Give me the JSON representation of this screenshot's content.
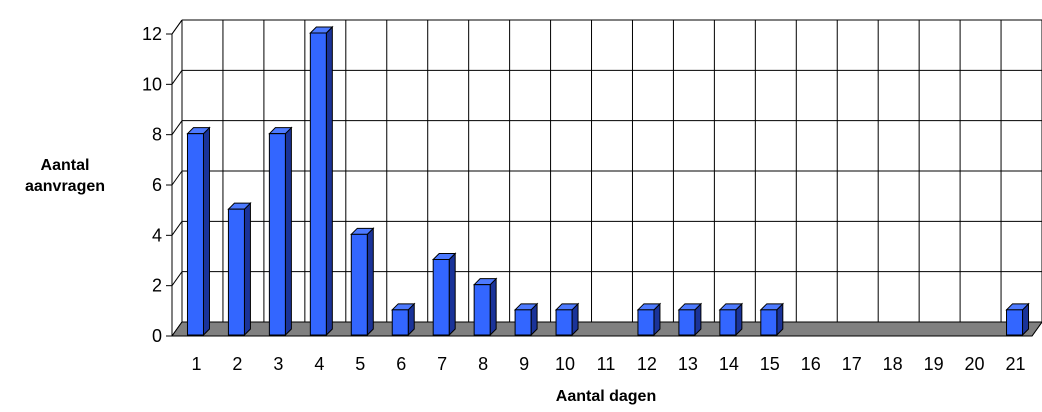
{
  "chart_data": {
    "type": "bar",
    "categories": [
      "1",
      "2",
      "3",
      "4",
      "5",
      "6",
      "7",
      "8",
      "9",
      "10",
      "11",
      "12",
      "13",
      "14",
      "15",
      "16",
      "17",
      "18",
      "19",
      "20",
      "21"
    ],
    "values": [
      8,
      5,
      8,
      12,
      4,
      1,
      3,
      2,
      1,
      1,
      0,
      1,
      1,
      1,
      1,
      0,
      0,
      0,
      0,
      0,
      1
    ],
    "title": "",
    "xlabel": "Aantal dagen",
    "ylabel_line1": "Aantal",
    "ylabel_line2": "aanvragen",
    "ylim": [
      0,
      12
    ],
    "yticks": [
      0,
      2,
      4,
      6,
      8,
      10,
      12
    ],
    "grid": true,
    "legend": "none",
    "three_d": true,
    "colors": {
      "bar_front": "#3366ff",
      "bar_side": "#1a3399",
      "bar_top": "#4d7aff",
      "floor": "#808080",
      "grid": "#000000",
      "text": "#000000"
    }
  }
}
